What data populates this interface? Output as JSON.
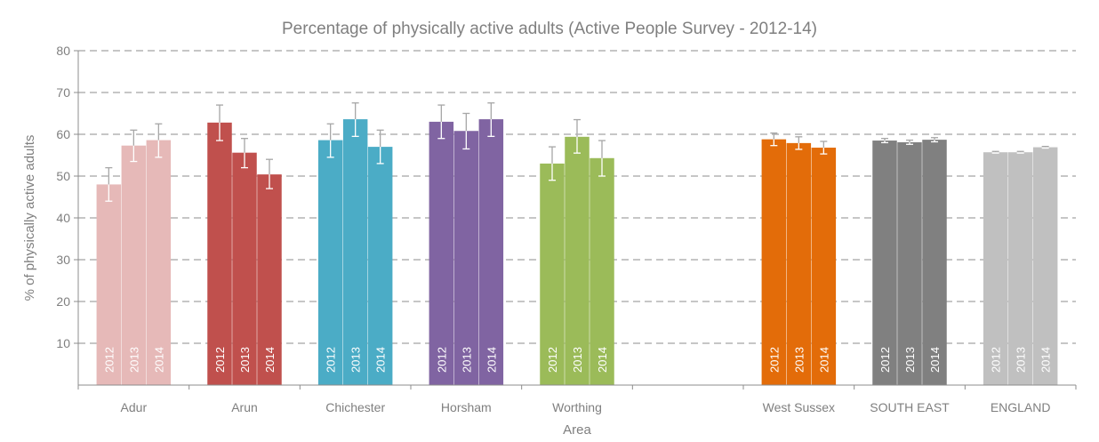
{
  "chart_data": {
    "type": "bar",
    "title": "Percentage of physically active adults (Active People Survey - 2012-14)",
    "xlabel": "Area",
    "ylabel": "% of physically active adults",
    "ylim": [
      0,
      80
    ],
    "yticks": [
      10,
      20,
      30,
      40,
      50,
      60,
      70,
      80
    ],
    "grid": true,
    "groups": [
      {
        "name": "Adur",
        "color": "#e6b9b8",
        "bars": [
          {
            "label": "2012",
            "value": 48.0,
            "ci": [
              44.0,
              52.0
            ]
          },
          {
            "label": "2013",
            "value": 57.3,
            "ci": [
              53.5,
              61.0
            ]
          },
          {
            "label": "2014",
            "value": 58.6,
            "ci": [
              54.5,
              62.5
            ]
          }
        ]
      },
      {
        "name": "Arun",
        "color": "#c0504d",
        "bars": [
          {
            "label": "2012",
            "value": 62.8,
            "ci": [
              58.5,
              67.0
            ]
          },
          {
            "label": "2013",
            "value": 55.6,
            "ci": [
              52.0,
              59.0
            ]
          },
          {
            "label": "2014",
            "value": 50.4,
            "ci": [
              47.0,
              54.0
            ]
          }
        ]
      },
      {
        "name": "Chichester",
        "color": "#4bacc6",
        "bars": [
          {
            "label": "2012",
            "value": 58.6,
            "ci": [
              54.5,
              62.5
            ]
          },
          {
            "label": "2013",
            "value": 63.6,
            "ci": [
              59.5,
              67.5
            ]
          },
          {
            "label": "2014",
            "value": 57.0,
            "ci": [
              53.0,
              61.0
            ]
          }
        ]
      },
      {
        "name": "Horsham",
        "color": "#8064a2",
        "bars": [
          {
            "label": "2012",
            "value": 63.0,
            "ci": [
              59.0,
              67.0
            ]
          },
          {
            "label": "2013",
            "value": 60.8,
            "ci": [
              56.5,
              65.0
            ]
          },
          {
            "label": "2014",
            "value": 63.6,
            "ci": [
              59.5,
              67.5
            ]
          }
        ]
      },
      {
        "name": "Worthing",
        "color": "#9bbb59",
        "bars": [
          {
            "label": "2012",
            "value": 53.0,
            "ci": [
              49.0,
              57.0
            ]
          },
          {
            "label": "2013",
            "value": 59.4,
            "ci": [
              55.5,
              63.5
            ]
          },
          {
            "label": "2014",
            "value": 54.3,
            "ci": [
              50.0,
              58.5
            ]
          }
        ]
      },
      {
        "name": "",
        "color": "#ffffff",
        "bars": []
      },
      {
        "name": "West Sussex",
        "color": "#e36c09",
        "bars": [
          {
            "label": "2012",
            "value": 58.8,
            "ci": [
              57.3,
              60.3
            ]
          },
          {
            "label": "2013",
            "value": 57.9,
            "ci": [
              56.4,
              59.4
            ]
          },
          {
            "label": "2014",
            "value": 56.8,
            "ci": [
              55.3,
              58.3
            ]
          }
        ]
      },
      {
        "name": "SOUTH EAST",
        "color": "#808080",
        "bars": [
          {
            "label": "2012",
            "value": 58.5,
            "ci": [
              58.0,
              59.0
            ]
          },
          {
            "label": "2013",
            "value": 58.1,
            "ci": [
              57.6,
              58.6
            ]
          },
          {
            "label": "2014",
            "value": 58.7,
            "ci": [
              58.2,
              59.2
            ]
          }
        ]
      },
      {
        "name": "ENGLAND",
        "color": "#c0c0c0",
        "bars": [
          {
            "label": "2012",
            "value": 55.7,
            "ci": [
              55.5,
              55.9
            ]
          },
          {
            "label": "2013",
            "value": 55.7,
            "ci": [
              55.5,
              55.9
            ]
          },
          {
            "label": "2014",
            "value": 56.9,
            "ci": [
              56.7,
              57.1
            ]
          }
        ]
      }
    ]
  }
}
